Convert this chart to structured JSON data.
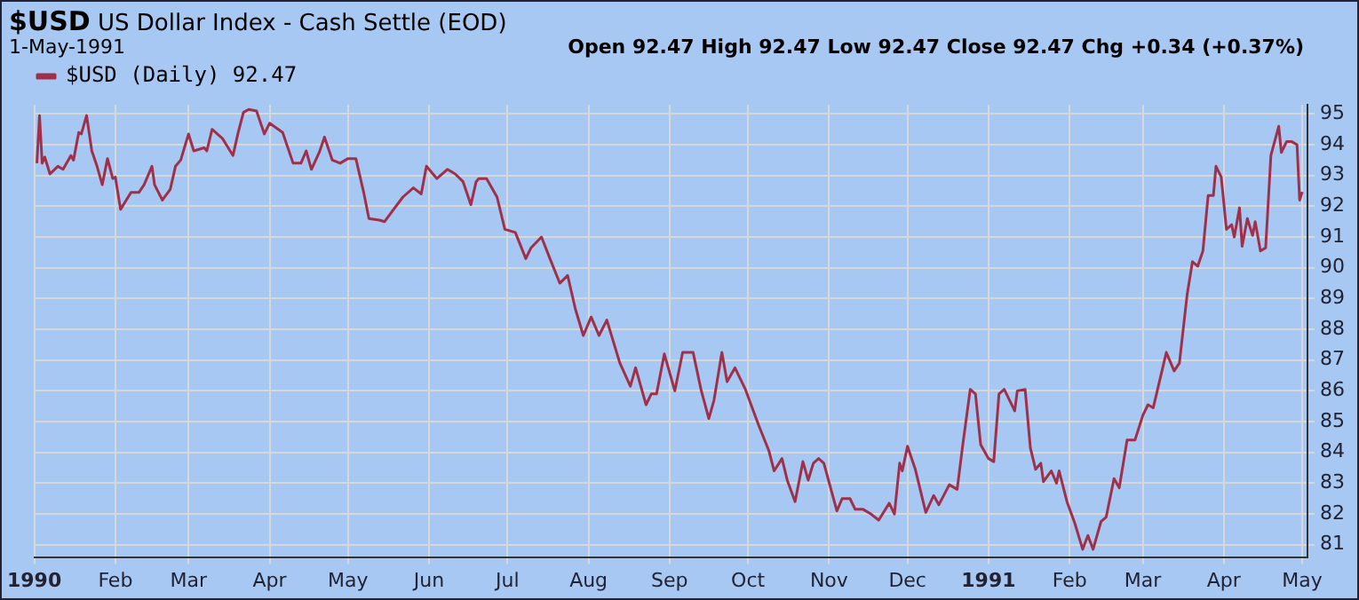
{
  "chart_data": {
    "type": "line",
    "title": "$USD",
    "subtitle": "US Dollar Index - Cash Settle (EOD)",
    "annotations": [
      "1-May-1991",
      "Open 92.47 High 92.47 Low 92.47 Close 92.47 Chg +0.34 (+0.37%)"
    ],
    "x": [
      "1990-01-02",
      "1990-01-03",
      "1990-01-04",
      "1990-01-05",
      "1990-01-07",
      "1990-01-10",
      "1990-01-12",
      "1990-01-15",
      "1990-01-16",
      "1990-01-18",
      "1990-01-19",
      "1990-01-21",
      "1990-01-23",
      "1990-01-25",
      "1990-01-27",
      "1990-01-29",
      "1990-01-31",
      "1990-02-01",
      "1990-02-03",
      "1990-02-07",
      "1990-02-10",
      "1990-02-12",
      "1990-02-15",
      "1990-02-16",
      "1990-02-19",
      "1990-02-22",
      "1990-02-24",
      "1990-02-26",
      "1990-03-01",
      "1990-03-03",
      "1990-03-07",
      "1990-03-08",
      "1990-03-10",
      "1990-03-14",
      "1990-03-18",
      "1990-03-20",
      "1990-03-22",
      "1990-03-24",
      "1990-03-27",
      "1990-03-30",
      "1990-04-01",
      "1990-04-06",
      "1990-04-10",
      "1990-04-13",
      "1990-04-15",
      "1990-04-17",
      "1990-04-20",
      "1990-04-22",
      "1990-04-25",
      "1990-04-28",
      "1990-05-01",
      "1990-05-04",
      "1990-05-07",
      "1990-05-09",
      "1990-05-13",
      "1990-05-15",
      "1990-05-18",
      "1990-05-22",
      "1990-05-26",
      "1990-05-29",
      "1990-05-31",
      "1990-06-04",
      "1990-06-08",
      "1990-06-11",
      "1990-06-14",
      "1990-06-17",
      "1990-06-19",
      "1990-06-20",
      "1990-06-23",
      "1990-06-27",
      "1990-06-30",
      "1990-07-04",
      "1990-07-08",
      "1990-07-10",
      "1990-07-14",
      "1990-07-17",
      "1990-07-21",
      "1990-07-24",
      "1990-07-27",
      "1990-07-30",
      "1990-08-02",
      "1990-08-05",
      "1990-08-08",
      "1990-08-13",
      "1990-08-17",
      "1990-08-19",
      "1990-08-23",
      "1990-08-25",
      "1990-08-27",
      "1990-08-30",
      "1990-09-03",
      "1990-09-06",
      "1990-09-10",
      "1990-09-13",
      "1990-09-16",
      "1990-09-18",
      "1990-09-21",
      "1990-09-23",
      "1990-09-26",
      "1990-09-30",
      "1990-10-05",
      "1990-10-09",
      "1990-10-11",
      "1990-10-14",
      "1990-10-16",
      "1990-10-19",
      "1990-10-22",
      "1990-10-24",
      "1990-10-26",
      "1990-10-28",
      "1990-10-30",
      "1990-11-04",
      "1990-11-06",
      "1990-11-09",
      "1990-11-11",
      "1990-11-14",
      "1990-11-17",
      "1990-11-20",
      "1990-11-24",
      "1990-11-26",
      "1990-11-28",
      "1990-11-29",
      "1990-12-01",
      "1990-12-04",
      "1990-12-08",
      "1990-12-11",
      "1990-12-13",
      "1990-12-17",
      "1990-12-20",
      "1990-12-22",
      "1990-12-25",
      "1990-12-27",
      "1990-12-29",
      "1991-01-01",
      "1991-01-03",
      "1991-01-05",
      "1991-01-07",
      "1991-01-11",
      "1991-01-12",
      "1991-01-15",
      "1991-01-17",
      "1991-01-19",
      "1991-01-21",
      "1991-01-22",
      "1991-01-25",
      "1991-01-27",
      "1991-01-28",
      "1991-01-31",
      "1991-02-03",
      "1991-02-06",
      "1991-02-08",
      "1991-02-10",
      "1991-02-13",
      "1991-02-15",
      "1991-02-18",
      "1991-02-20",
      "1991-02-23",
      "1991-02-26",
      "1991-03-01",
      "1991-03-03",
      "1991-03-05",
      "1991-03-10",
      "1991-03-13",
      "1991-03-15",
      "1991-03-18",
      "1991-03-20",
      "1991-03-22",
      "1991-03-24",
      "1991-03-26",
      "1991-03-28",
      "1991-03-29",
      "1991-03-31",
      "1991-04-02",
      "1991-04-04",
      "1991-04-05",
      "1991-04-07",
      "1991-04-08",
      "1991-04-10",
      "1991-04-12",
      "1991-04-13",
      "1991-04-15",
      "1991-04-17",
      "1991-04-19",
      "1991-04-22",
      "1991-04-23",
      "1991-04-25",
      "1991-04-27",
      "1991-04-29",
      "1991-04-30",
      "1991-05-01"
    ],
    "series": [
      {
        "name": "$USD (Daily) 92.47",
        "color": "#a0304a",
        "values": [
          93.4,
          94.95,
          93.4,
          93.6,
          93.05,
          93.3,
          93.2,
          93.65,
          93.5,
          94.4,
          94.35,
          94.95,
          93.8,
          93.3,
          92.7,
          93.55,
          92.9,
          92.95,
          91.9,
          92.45,
          92.45,
          92.7,
          93.3,
          92.7,
          92.2,
          92.55,
          93.3,
          93.5,
          94.35,
          93.8,
          93.9,
          93.8,
          94.5,
          94.2,
          93.65,
          94.4,
          95.05,
          95.15,
          95.1,
          94.35,
          94.7,
          94.4,
          93.4,
          93.4,
          93.8,
          93.2,
          93.75,
          94.25,
          93.5,
          93.4,
          93.55,
          93.55,
          92.45,
          91.6,
          91.55,
          91.5,
          91.85,
          92.3,
          92.6,
          92.4,
          93.3,
          92.9,
          93.2,
          93.05,
          92.8,
          92.05,
          92.8,
          92.9,
          92.9,
          92.3,
          91.25,
          91.15,
          90.3,
          90.65,
          91.0,
          90.35,
          89.5,
          89.75,
          88.65,
          87.8,
          88.4,
          87.8,
          88.3,
          86.9,
          86.15,
          86.75,
          85.55,
          85.9,
          85.9,
          87.2,
          86.0,
          87.25,
          87.25,
          86.05,
          85.1,
          85.7,
          87.25,
          86.3,
          86.75,
          86.05,
          84.9,
          84.05,
          83.4,
          83.8,
          83.1,
          82.4,
          83.7,
          83.1,
          83.65,
          83.8,
          83.65,
          82.1,
          82.5,
          82.5,
          82.15,
          82.15,
          82.0,
          81.8,
          82.35,
          82.0,
          83.65,
          83.4,
          84.2,
          83.45,
          82.05,
          82.6,
          82.3,
          82.95,
          82.8,
          84.15,
          86.05,
          85.9,
          84.25,
          83.8,
          83.7,
          85.9,
          86.05,
          85.35,
          86.0,
          86.05,
          84.15,
          83.45,
          83.65,
          83.05,
          83.4,
          83.0,
          83.4,
          82.4,
          81.7,
          80.85,
          81.3,
          80.85,
          81.75,
          81.9,
          83.15,
          82.85,
          84.4,
          84.4,
          85.2,
          85.55,
          85.45,
          87.25,
          86.65,
          86.9,
          89.15,
          90.2,
          90.05,
          90.55,
          92.35,
          92.35,
          93.3,
          92.95,
          91.25,
          91.4,
          91.0,
          91.95,
          90.7,
          91.6,
          91.05,
          91.5,
          90.55,
          90.65,
          93.65,
          94.6,
          93.75,
          94.1,
          94.1,
          94.0,
          92.2,
          92.47
        ]
      }
    ],
    "xlim": [
      "1990-01-01",
      "1991-05-03"
    ],
    "xticks": [
      {
        "value": "1990-01-01",
        "label": "1990"
      },
      {
        "value": "1990-02-01",
        "label": "Feb"
      },
      {
        "value": "1990-03-01",
        "label": "Mar"
      },
      {
        "value": "1990-04-01",
        "label": "Apr"
      },
      {
        "value": "1990-05-01",
        "label": "May"
      },
      {
        "value": "1990-06-01",
        "label": "Jun"
      },
      {
        "value": "1990-07-01",
        "label": "Jul"
      },
      {
        "value": "1990-08-01",
        "label": "Aug"
      },
      {
        "value": "1990-09-01",
        "label": "Sep"
      },
      {
        "value": "1990-10-01",
        "label": "Oct"
      },
      {
        "value": "1990-11-01",
        "label": "Nov"
      },
      {
        "value": "1990-12-01",
        "label": "Dec"
      },
      {
        "value": "1991-01-01",
        "label": "1991"
      },
      {
        "value": "1991-02-01",
        "label": "Feb"
      },
      {
        "value": "1991-03-01",
        "label": "Mar"
      },
      {
        "value": "1991-04-01",
        "label": "Apr"
      },
      {
        "value": "1991-05-01",
        "label": "May"
      }
    ],
    "ylim": [
      80.6,
      95.3
    ],
    "yticks": [
      81,
      82,
      83,
      84,
      85,
      86,
      87,
      88,
      89,
      90,
      91,
      92,
      93,
      94,
      95
    ],
    "grid": true,
    "legend": "top left",
    "marker": "none",
    "line_style": "solid"
  }
}
